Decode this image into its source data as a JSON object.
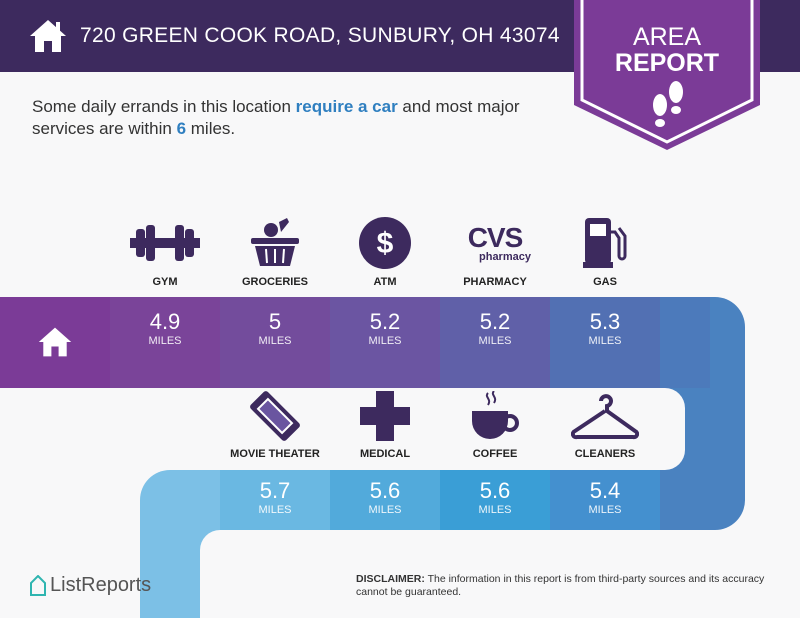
{
  "header": {
    "address": "720 GREEN COOK ROAD, SUNBURY, OH 43074",
    "badge_line1": "AREA",
    "badge_line2": "REPORT"
  },
  "intro": {
    "part1": "Some daily errands in this location ",
    "emph1": "require a car",
    "part2": " and most major services are within ",
    "emph2": "6",
    "part3": " miles."
  },
  "top_row": [
    {
      "label": "GYM",
      "icon": "dumbbell-icon",
      "distance": "4.9",
      "unit": "MILES"
    },
    {
      "label": "GROCERIES",
      "icon": "basket-icon",
      "distance": "5",
      "unit": "MILES"
    },
    {
      "label": "ATM",
      "icon": "dollar-icon",
      "distance": "5.2",
      "unit": "MILES"
    },
    {
      "label": "PHARMACY",
      "icon": "cvs-pharmacy-icon",
      "distance": "5.2",
      "unit": "MILES"
    },
    {
      "label": "GAS",
      "icon": "gas-pump-icon",
      "distance": "5.3",
      "unit": "MILES"
    }
  ],
  "bottom_row": [
    {
      "label": "MOVIE THEATER",
      "icon": "ticket-icon",
      "distance": "5.7",
      "unit": "MILES"
    },
    {
      "label": "MEDICAL",
      "icon": "medical-cross-icon",
      "distance": "5.6",
      "unit": "MILES"
    },
    {
      "label": "COFFEE",
      "icon": "coffee-cup-icon",
      "distance": "5.6",
      "unit": "MILES"
    },
    {
      "label": "CLEANERS",
      "icon": "hanger-icon",
      "distance": "5.4",
      "unit": "MILES"
    }
  ],
  "cvs_logo": {
    "big": "CVS",
    "small": "pharmacy"
  },
  "footer": {
    "logo": "ListReports",
    "disclaimer_label": "DISCLAIMER:",
    "disclaimer_text": " The information in this report is from third-party sources and its accuracy cannot be guaranteed."
  },
  "colors": {
    "header": "#3d2a5e",
    "badge": "#7b3b97",
    "icon": "#3d2a5e",
    "accent_text": "#2f7fc0"
  }
}
